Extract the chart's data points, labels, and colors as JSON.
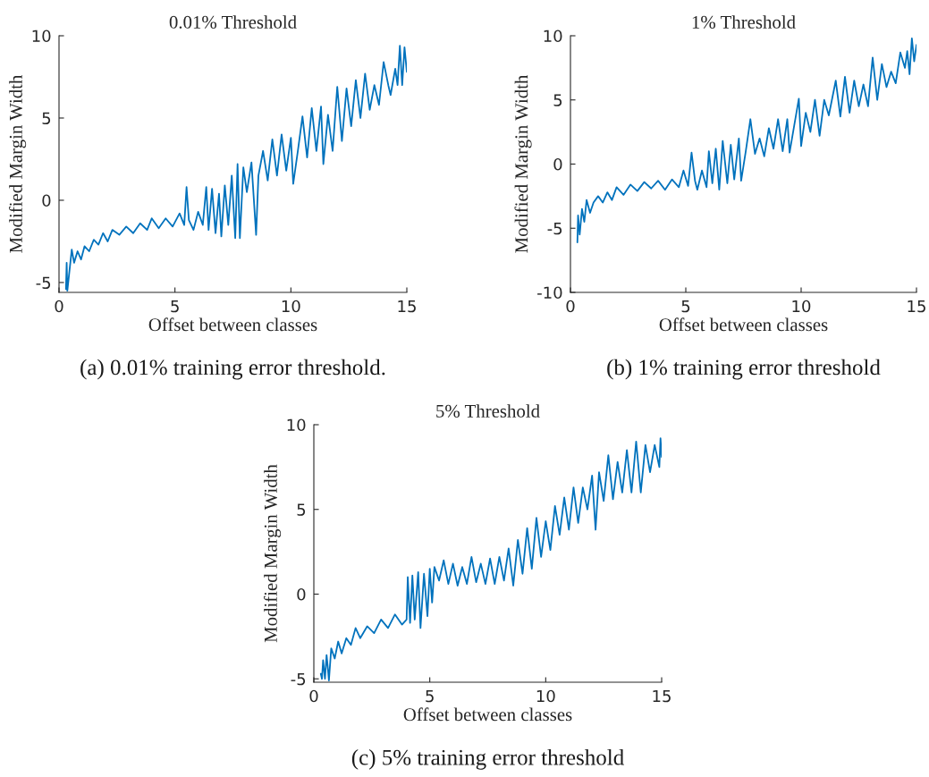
{
  "chart_data": [
    {
      "type": "line",
      "title": "0.01% Threshold",
      "xlabel": "Offset between classes",
      "ylabel": "Modified Margin Width",
      "annotations": [
        "(a) 0.01% training error threshold."
      ],
      "xlim": [
        0,
        15
      ],
      "xticks": [
        0,
        5,
        10,
        15
      ],
      "ylim": [
        -5.6,
        10
      ],
      "yticks": [
        -5,
        0,
        5,
        10
      ],
      "grid": false,
      "series": [
        {
          "color": "#0072bd",
          "x": [
            0.3,
            0.33,
            0.36,
            0.45,
            0.55,
            0.65,
            0.8,
            0.95,
            1.1,
            1.3,
            1.5,
            1.7,
            1.9,
            2.1,
            2.3,
            2.6,
            2.9,
            3.2,
            3.5,
            3.8,
            4.0,
            4.3,
            4.6,
            4.9,
            5.2,
            5.4,
            5.5,
            5.6,
            5.8,
            6.0,
            6.2,
            6.35,
            6.45,
            6.6,
            6.75,
            6.9,
            7.0,
            7.15,
            7.3,
            7.45,
            7.6,
            7.7,
            7.8,
            7.95,
            8.1,
            8.3,
            8.5,
            8.6,
            8.8,
            9.0,
            9.2,
            9.4,
            9.6,
            9.8,
            10.0,
            10.1,
            10.3,
            10.5,
            10.7,
            10.9,
            11.1,
            11.3,
            11.4,
            11.6,
            11.8,
            12.0,
            12.2,
            12.4,
            12.6,
            12.8,
            13.0,
            13.2,
            13.4,
            13.6,
            13.8,
            14.0,
            14.2,
            14.3,
            14.5,
            14.6,
            14.7,
            14.8,
            14.9,
            15.0
          ],
          "values": [
            -5.4,
            -3.8,
            -5.5,
            -4.3,
            -3.0,
            -3.8,
            -3.1,
            -3.6,
            -2.8,
            -3.1,
            -2.4,
            -2.7,
            -2.0,
            -2.5,
            -1.8,
            -2.1,
            -1.6,
            -2.0,
            -1.4,
            -1.8,
            -1.1,
            -1.7,
            -1.1,
            -1.6,
            -0.8,
            -1.5,
            0.8,
            -1.2,
            -1.8,
            -0.7,
            -1.5,
            0.8,
            -1.8,
            0.7,
            -2.0,
            0.4,
            -2.2,
            0.9,
            -1.5,
            1.5,
            -2.3,
            2.2,
            -2.3,
            2.0,
            0.5,
            2.3,
            -2.1,
            1.5,
            3.0,
            1.2,
            3.7,
            1.5,
            4.0,
            1.8,
            3.8,
            1.0,
            3.0,
            5.1,
            2.6,
            5.6,
            3.0,
            5.7,
            2.2,
            5.2,
            3.0,
            6.9,
            3.6,
            6.8,
            4.5,
            7.3,
            5.0,
            7.7,
            5.5,
            7.0,
            5.8,
            8.4,
            7.0,
            6.4,
            8.0,
            7.0,
            9.4,
            7.0,
            9.3,
            7.8
          ]
        }
      ]
    },
    {
      "type": "line",
      "title": "1% Threshold",
      "xlabel": "Offset between classes",
      "ylabel": "Modified Margin Width",
      "annotations": [
        "(b) 1% training error threshold"
      ],
      "xlim": [
        0,
        15
      ],
      "xticks": [
        0,
        5,
        10,
        15
      ],
      "ylim": [
        -10,
        10
      ],
      "yticks": [
        -10,
        -5,
        0,
        5,
        10
      ],
      "grid": false,
      "series": [
        {
          "color": "#0072bd",
          "x": [
            0.3,
            0.33,
            0.4,
            0.5,
            0.6,
            0.7,
            0.85,
            1.0,
            1.2,
            1.4,
            1.6,
            1.8,
            2.0,
            2.3,
            2.6,
            2.9,
            3.2,
            3.5,
            3.8,
            4.1,
            4.4,
            4.7,
            4.9,
            5.1,
            5.25,
            5.4,
            5.5,
            5.7,
            5.9,
            6.0,
            6.15,
            6.3,
            6.45,
            6.6,
            6.8,
            6.95,
            7.1,
            7.3,
            7.4,
            7.6,
            7.8,
            8.0,
            8.2,
            8.4,
            8.6,
            8.8,
            9.0,
            9.2,
            9.4,
            9.5,
            9.7,
            9.9,
            10.0,
            10.2,
            10.4,
            10.6,
            10.8,
            11.0,
            11.2,
            11.5,
            11.7,
            11.9,
            12.1,
            12.3,
            12.5,
            12.7,
            12.9,
            13.1,
            13.3,
            13.5,
            13.7,
            13.9,
            14.1,
            14.3,
            14.5,
            14.6,
            14.7,
            14.8,
            14.9,
            15.0
          ],
          "values": [
            -6.1,
            -4.0,
            -5.5,
            -3.5,
            -4.5,
            -2.8,
            -3.8,
            -3.0,
            -2.5,
            -3.0,
            -2.2,
            -2.8,
            -1.8,
            -2.4,
            -1.6,
            -2.1,
            -1.4,
            -1.9,
            -1.3,
            -2.0,
            -1.2,
            -1.8,
            -0.5,
            -1.7,
            0.9,
            -1.3,
            -2.0,
            -0.5,
            -1.8,
            1.0,
            -1.5,
            1.2,
            -2.0,
            1.8,
            -1.5,
            1.5,
            -1.2,
            2.0,
            -1.3,
            1.0,
            3.5,
            0.8,
            2.0,
            0.6,
            2.8,
            1.2,
            3.5,
            1.0,
            3.5,
            0.9,
            3.0,
            5.1,
            1.4,
            4.0,
            2.5,
            5.0,
            2.2,
            5.0,
            3.8,
            6.5,
            3.7,
            6.8,
            4.0,
            6.5,
            4.5,
            6.2,
            4.5,
            8.3,
            5.0,
            7.8,
            6.0,
            7.2,
            6.3,
            8.7,
            7.5,
            8.8,
            7.0,
            9.8,
            8.0,
            9.3
          ]
        }
      ]
    },
    {
      "type": "line",
      "title": "5% Threshold",
      "xlabel": "Offset between classes",
      "ylabel": "Modified Margin Width",
      "annotations": [
        "(c) 5% training error threshold"
      ],
      "xlim": [
        0,
        15
      ],
      "xticks": [
        0,
        5,
        10,
        15
      ],
      "ylim": [
        -5.2,
        10
      ],
      "yticks": [
        -5,
        0,
        5,
        10
      ],
      "grid": false,
      "series": [
        {
          "color": "#0072bd",
          "x": [
            0.3,
            0.35,
            0.4,
            0.48,
            0.55,
            0.6,
            0.65,
            0.75,
            0.9,
            1.05,
            1.2,
            1.4,
            1.6,
            1.8,
            2.0,
            2.3,
            2.6,
            2.9,
            3.2,
            3.5,
            3.8,
            4.0,
            4.05,
            4.15,
            4.25,
            4.35,
            4.5,
            4.6,
            4.75,
            4.9,
            5.0,
            5.1,
            5.2,
            5.4,
            5.6,
            5.8,
            6.0,
            6.2,
            6.4,
            6.6,
            6.8,
            7.0,
            7.2,
            7.4,
            7.6,
            7.8,
            8.0,
            8.2,
            8.4,
            8.6,
            8.8,
            9.0,
            9.2,
            9.4,
            9.6,
            9.8,
            10.0,
            10.2,
            10.4,
            10.6,
            10.8,
            11.0,
            11.2,
            11.4,
            11.6,
            11.8,
            12.0,
            12.15,
            12.3,
            12.5,
            12.7,
            12.9,
            13.1,
            13.3,
            13.5,
            13.7,
            13.9,
            14.1,
            14.3,
            14.5,
            14.7,
            14.9,
            14.95,
            15.0
          ],
          "values": [
            -4.7,
            -5.0,
            -3.9,
            -5.0,
            -3.6,
            -4.3,
            -5.1,
            -3.2,
            -3.8,
            -2.8,
            -3.5,
            -2.6,
            -3.0,
            -2.0,
            -2.6,
            -1.9,
            -2.3,
            -1.5,
            -2.0,
            -1.2,
            -1.8,
            -1.5,
            1.0,
            -1.7,
            1.1,
            -1.5,
            1.3,
            -2.0,
            1.2,
            -1.3,
            1.5,
            -0.5,
            1.6,
            0.8,
            2.0,
            0.6,
            1.8,
            0.5,
            1.6,
            0.6,
            2.2,
            0.7,
            1.8,
            0.6,
            2.1,
            0.6,
            2.2,
            0.8,
            2.7,
            0.5,
            3.2,
            1.2,
            3.9,
            1.5,
            4.5,
            2.2,
            4.3,
            2.6,
            5.2,
            3.5,
            5.7,
            3.8,
            6.3,
            4.2,
            6.3,
            5.0,
            7.0,
            3.8,
            7.2,
            5.5,
            8.2,
            5.6,
            7.8,
            6.0,
            8.5,
            6.0,
            9.0,
            6.0,
            8.8,
            7.2,
            8.8,
            7.5,
            9.2,
            8.1
          ]
        }
      ]
    }
  ]
}
